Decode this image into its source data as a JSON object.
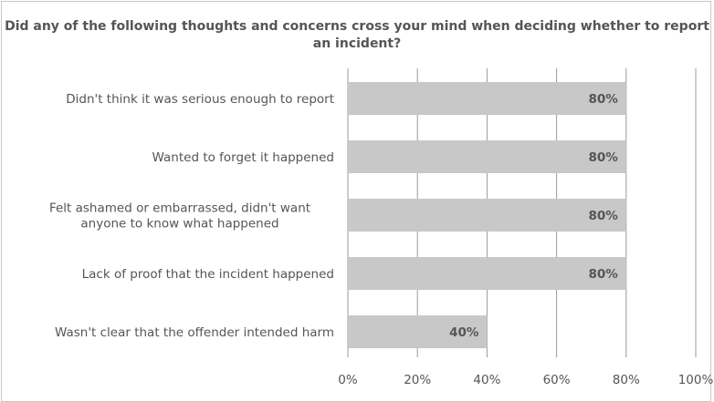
{
  "chart_data": {
    "type": "bar",
    "orientation": "horizontal",
    "title": "Did any of the following thoughts and concerns cross your mind when deciding whether to report an incident?",
    "categories": [
      [
        "Didn't think it was serious enough to report"
      ],
      [
        "Wanted to forget it happened"
      ],
      [
        "Felt ashamed or embarrassed, didn't want",
        "anyone to know what happened"
      ],
      [
        "Lack of proof that the incident happened"
      ],
      [
        "Wasn't clear that the offender intended harm"
      ]
    ],
    "values": [
      80,
      80,
      80,
      80,
      40
    ],
    "value_labels": [
      "80%",
      "80%",
      "80%",
      "80%",
      "40%"
    ],
    "xlim": [
      0,
      100
    ],
    "xticks": [
      0,
      20,
      40,
      60,
      80,
      100
    ],
    "xtick_labels": [
      "0%",
      "20%",
      "40%",
      "60%",
      "80%",
      "100%"
    ],
    "grid": "vertical",
    "bar_color": "#c8c8c8",
    "grid_color": "#9a9a9a",
    "text_color": "#555555"
  }
}
